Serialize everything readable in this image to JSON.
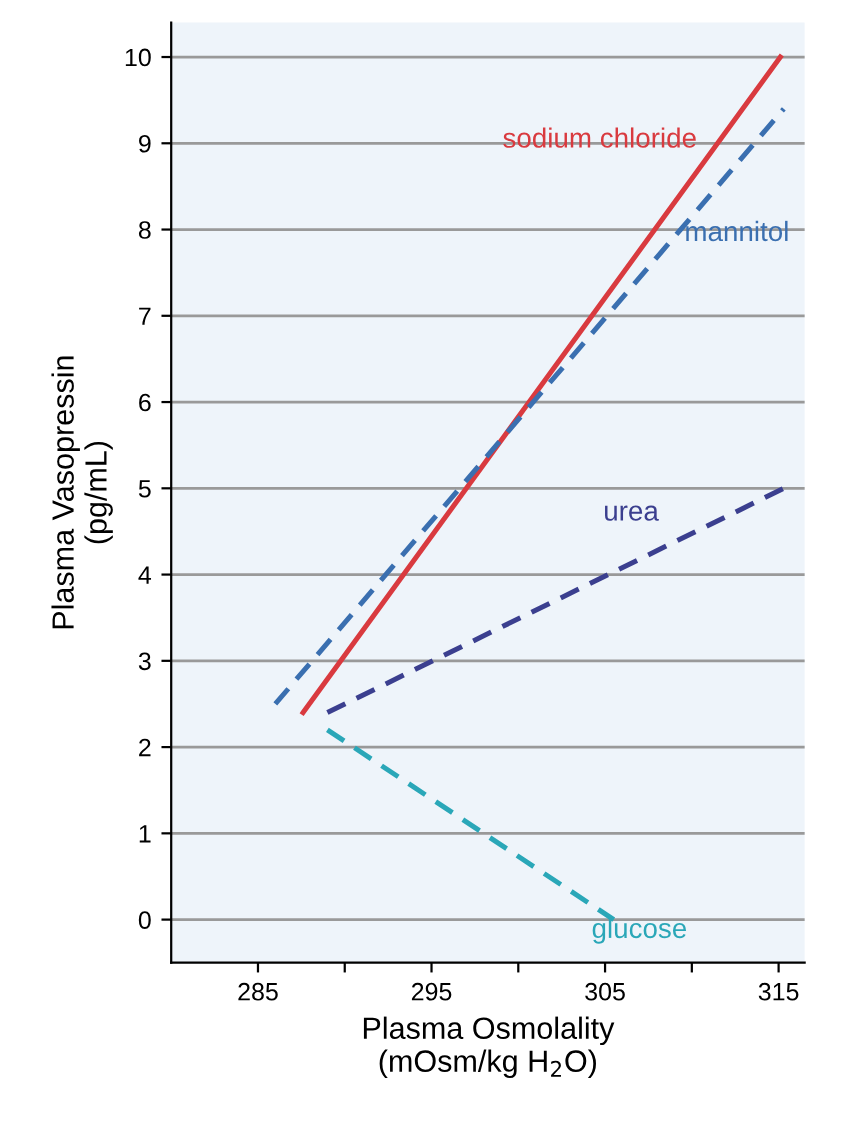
{
  "chart_data": {
    "type": "line",
    "xlabel": "Plasma Osmolality\n(mOsm/kg H$_{2}$O)",
    "ylabel": "Plasma Vasopressin\n(pg/mL)",
    "xlim": [
      280,
      316.5
    ],
    "ylim": [
      -0.5,
      10.4
    ],
    "xticks": [
      285,
      {
        "value": 290,
        "label": null
      },
      295,
      {
        "value": 300,
        "label": null
      },
      305,
      {
        "value": 310,
        "label": null
      },
      315
    ],
    "yticks": [
      0,
      1,
      2,
      3,
      4,
      5,
      6,
      7,
      8,
      9,
      10
    ],
    "grid": "y",
    "legend": false,
    "marker": "none",
    "series": [
      {
        "name": "sodium chloride",
        "color": "#d93a3f",
        "line_style": "solid",
        "x": [
          287.6,
          315.1
        ],
        "values": [
          2.4,
          10
        ]
      },
      {
        "name": "mannitol",
        "color": "#3a6fb0",
        "line_style": "dashed",
        "x": [
          286,
          315.3
        ],
        "values": [
          2.5,
          9.4
        ]
      },
      {
        "name": "urea",
        "color": "#3b3f8f",
        "line_style": "dashed",
        "x": [
          289,
          315.3
        ],
        "values": [
          2.4,
          5
        ]
      },
      {
        "name": "glucose",
        "color": "#2aa7b8",
        "line_style": "dashed",
        "x": [
          289,
          305.5
        ],
        "values": [
          2.2,
          0
        ]
      }
    ]
  }
}
